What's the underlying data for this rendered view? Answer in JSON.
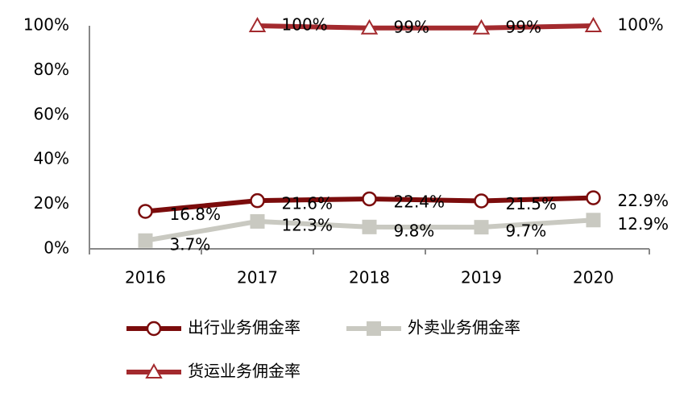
{
  "chart_data": {
    "type": "line",
    "categories": [
      "2016",
      "2017",
      "2018",
      "2019",
      "2020"
    ],
    "series": [
      {
        "name": "出行业务佣金率",
        "color": "#7b0c0c",
        "marker": "circle",
        "values": [
          16.8,
          21.6,
          22.4,
          21.5,
          22.9
        ],
        "value_labels": [
          "16.8%",
          "21.6%",
          "22.4%",
          "21.5%",
          "22.9%"
        ]
      },
      {
        "name": "外卖业务佣金率",
        "color": "#c9c9c1",
        "marker": "square",
        "values": [
          3.7,
          12.3,
          9.8,
          9.7,
          12.9
        ],
        "value_labels": [
          "3.7%",
          "12.3%",
          "9.8%",
          "9.7%",
          "12.9%"
        ]
      },
      {
        "name": "货运业务佣金率",
        "color": "#a32a2e",
        "marker": "triangle",
        "values": [
          null,
          100,
          99,
          99,
          100
        ],
        "value_labels": [
          null,
          "100%",
          "99%",
          "99%",
          "100%"
        ]
      }
    ],
    "ylim": [
      0,
      100
    ],
    "yticks": [
      {
        "value": 0,
        "label": "0%"
      },
      {
        "value": 20,
        "label": "20%"
      },
      {
        "value": 40,
        "label": "40%"
      },
      {
        "value": 60,
        "label": "60%"
      },
      {
        "value": 80,
        "label": "80%"
      },
      {
        "value": 100,
        "label": "100%"
      }
    ],
    "grid": false
  }
}
